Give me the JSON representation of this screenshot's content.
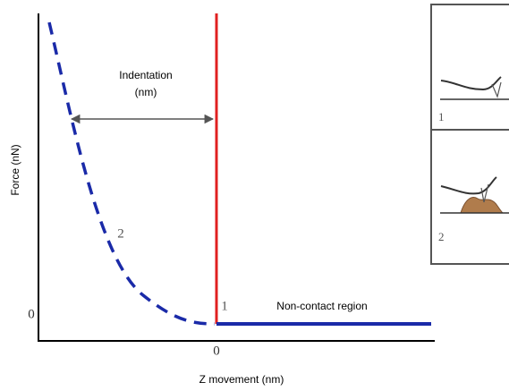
{
  "axes": {
    "y_label": "Force (nN)",
    "x_label": "Z movement (nm)",
    "x_origin": "0",
    "y_origin": "0"
  },
  "annotations": {
    "indentation": "Indentation",
    "indentation_unit": "(nm)",
    "point_1": "1",
    "point_2": "2",
    "region": "Non-contact region"
  },
  "insets": [
    {
      "label": "1"
    },
    {
      "label": "2"
    }
  ]
}
